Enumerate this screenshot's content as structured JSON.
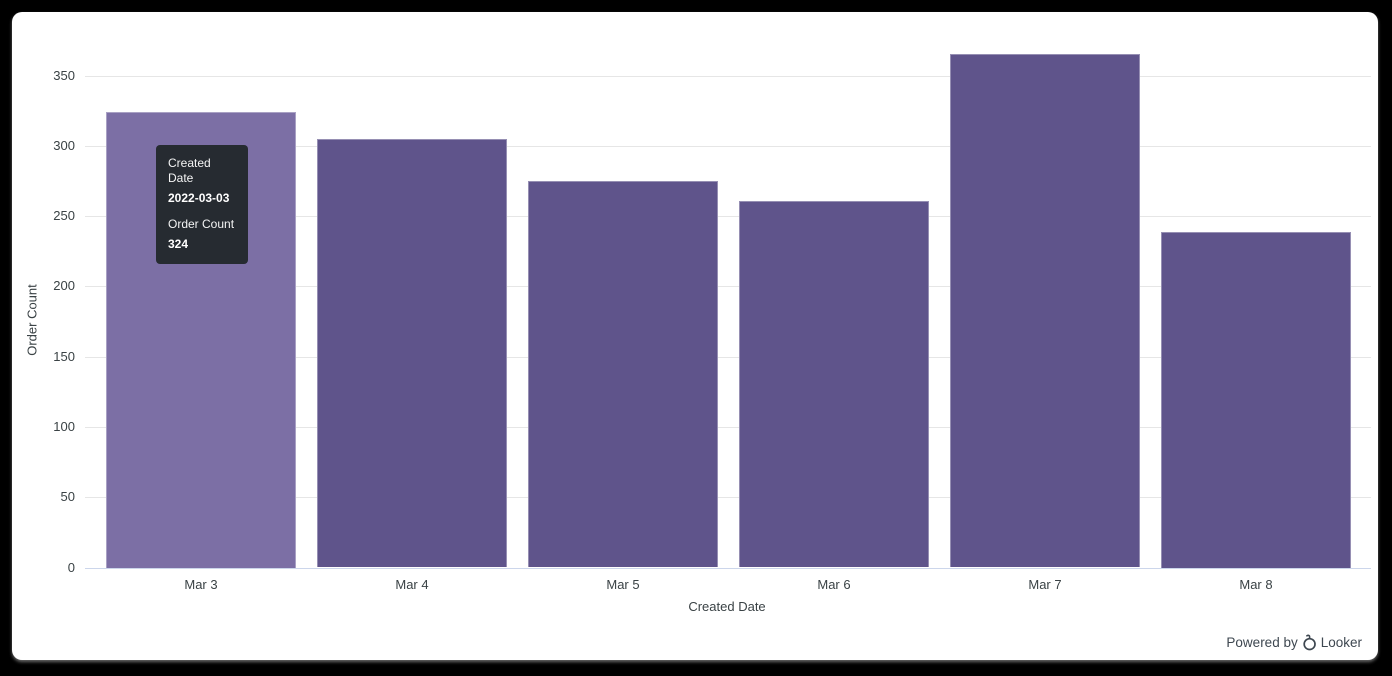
{
  "chart_data": {
    "type": "bar",
    "title": "",
    "categories": [
      "Mar 3",
      "Mar 4",
      "Mar 5",
      "Mar 6",
      "Mar 7",
      "Mar 8"
    ],
    "values": [
      324,
      305,
      275,
      261,
      365,
      239
    ],
    "xlabel": "Created Date",
    "ylabel": "Order Count",
    "ylim": [
      0,
      350
    ],
    "yticks": [
      0,
      50,
      100,
      150,
      200,
      250,
      300,
      350
    ],
    "grid": true,
    "legend": "none",
    "hovered_index": 0,
    "bar_color": "#5F548B",
    "bar_color_hover": "#7C6FA5",
    "gridline_color": "#e6e6e6",
    "axis_line_color": "#ccd6eb",
    "label_color": "#3a4245"
  },
  "tooltip": {
    "dimension_label": "Created Date",
    "dimension_value": "2022-03-03",
    "measure_label": "Order Count",
    "measure_value": "324",
    "bg": "#262b31",
    "text_color": "#ffffff"
  },
  "footer": {
    "powered_by": "Powered by",
    "brand": "Looker",
    "color": "#3e4750"
  }
}
